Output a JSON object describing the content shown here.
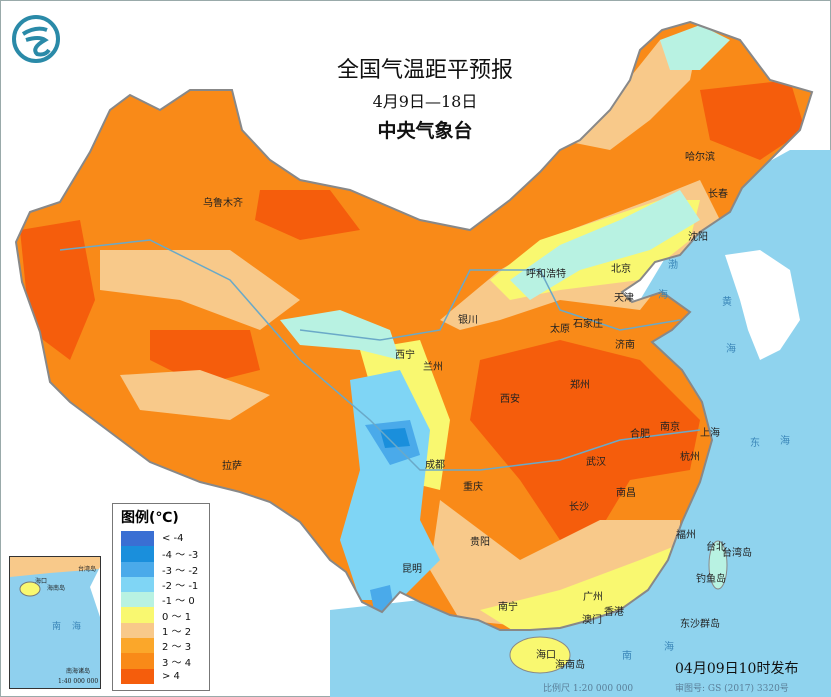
{
  "header": {
    "title": "全国气温距平预报",
    "date_range": "4月9日—18日",
    "organization": "中央气象台"
  },
  "legend": {
    "title": "图例(℃)",
    "items": [
      {
        "label": "< -4",
        "color": "#3a6fd3"
      },
      {
        "label": "-4 ～ -3",
        "color": "#1a8fdc"
      },
      {
        "label": "-3 ～ -2",
        "color": "#4aaaea"
      },
      {
        "label": "-2 ～ -1",
        "color": "#7fd5f5"
      },
      {
        "label": "-1 ～ 0",
        "color": "#b8f2e2"
      },
      {
        "label": "0 ～ 1",
        "color": "#f9f870"
      },
      {
        "label": "1 ～ 2",
        "color": "#f8c98a"
      },
      {
        "label": "2 ～ 3",
        "color": "#fba72a"
      },
      {
        "label": "3 ～ 4",
        "color": "#f98a18"
      },
      {
        "label": "> 4",
        "color": "#f55d0c"
      }
    ]
  },
  "cities": [
    "乌鲁木齐",
    "哈尔滨",
    "长春",
    "沈阳",
    "呼和浩特",
    "北京",
    "天津",
    "银川",
    "石家庄",
    "太原",
    "济南",
    "西宁",
    "兰州",
    "郑州",
    "西安",
    "南京",
    "上海",
    "合肥",
    "武汉",
    "杭州",
    "拉萨",
    "成都",
    "重庆",
    "南昌",
    "长沙",
    "贵阳",
    "福州",
    "台北",
    "昆明",
    "南宁",
    "广州",
    "香港",
    "澳门",
    "海口"
  ],
  "seas": [
    "渤",
    "海",
    "黄",
    "海",
    "东",
    "海",
    "南",
    "海"
  ],
  "islands": [
    "台湾岛",
    "海南岛",
    "钓鱼岛",
    "东沙群岛"
  ],
  "inset": {
    "city": "海口",
    "island": "海南岛",
    "taiwan": "台湾岛",
    "sea": [
      "南",
      "海"
    ],
    "caption": "南海诸岛",
    "scale": "1:40 000 000"
  },
  "footer": {
    "publish": "04月09日10时发布",
    "scale": "比例尺 1:20 000 000",
    "approval": "审图号: GS (2017) 3320号"
  },
  "colors": {
    "sea": "#8fd3ee",
    "foreign_land": "#ffffff",
    "border": "#888888"
  }
}
